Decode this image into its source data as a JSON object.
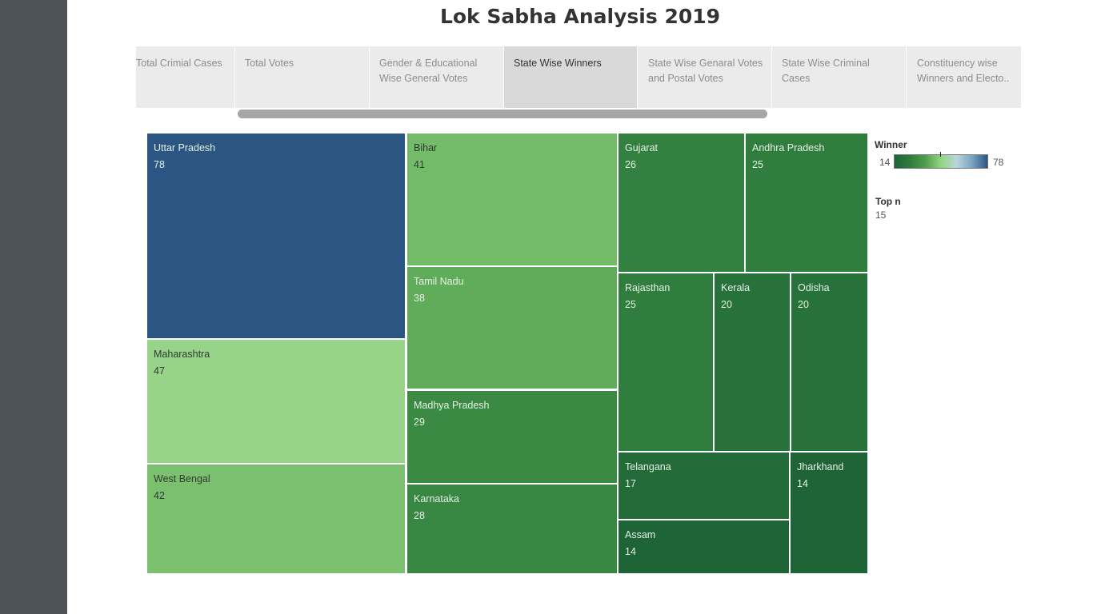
{
  "dashboard_title": "Lok Sabha Analysis 2019",
  "tabs": [
    {
      "label": "Total Crimial Cases",
      "active": false
    },
    {
      "label": "Total Votes",
      "active": false
    },
    {
      "label": "Gender & Educational Wise General Votes",
      "active": false
    },
    {
      "label": "State Wise Winners",
      "active": true
    },
    {
      "label": "State Wise Genaral Votes and Postal Votes",
      "active": false
    },
    {
      "label": "State Wise Criminal Cases",
      "active": false
    },
    {
      "label": "Constituency wise Winners and Electo..",
      "active": false
    }
  ],
  "legend": {
    "title": "Winner",
    "min": "14",
    "max": "78"
  },
  "parameter": {
    "label": "Top n",
    "value": "15"
  },
  "chart_data": {
    "type": "treemap",
    "measure": "Winner",
    "color_scale": {
      "min": 14,
      "max": 78,
      "stops": [
        "#1f6437",
        "#2e7d3e",
        "#4f9e4d",
        "#93d482",
        "#b9d6d9",
        "#7aa4c4",
        "#2b5683"
      ]
    },
    "items": [
      {
        "state": "Uttar Pradesh",
        "winners": 78
      },
      {
        "state": "Maharashtra",
        "winners": 47
      },
      {
        "state": "West Bengal",
        "winners": 42
      },
      {
        "state": "Bihar",
        "winners": 41
      },
      {
        "state": "Tamil Nadu",
        "winners": 38
      },
      {
        "state": "Madhya Pradesh",
        "winners": 29
      },
      {
        "state": "Karnataka",
        "winners": 28
      },
      {
        "state": "Gujarat",
        "winners": 26
      },
      {
        "state": "Andhra Pradesh",
        "winners": 25
      },
      {
        "state": "Rajasthan",
        "winners": 25
      },
      {
        "state": "Kerala",
        "winners": 20
      },
      {
        "state": "Odisha",
        "winners": 20
      },
      {
        "state": "Telangana",
        "winners": 17
      },
      {
        "state": "Jharkhand",
        "winners": 14
      },
      {
        "state": "Assam",
        "winners": 14
      }
    ]
  }
}
